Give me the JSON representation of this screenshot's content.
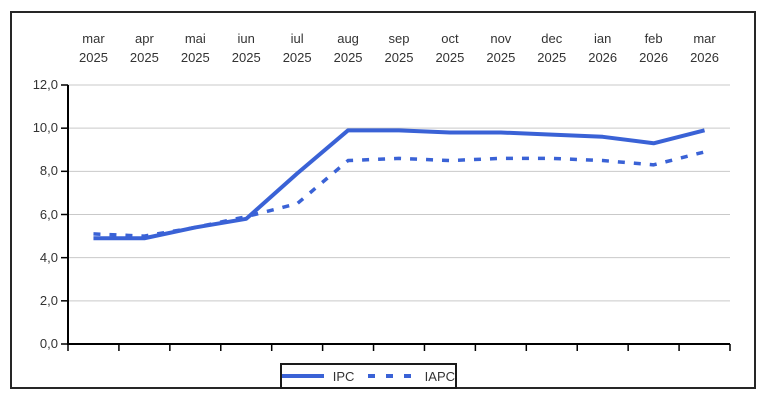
{
  "chart_data": {
    "type": "line",
    "title": "",
    "xlabel": "",
    "ylabel": "",
    "categories": [
      {
        "month": "mar",
        "year": "2025"
      },
      {
        "month": "apr",
        "year": "2025"
      },
      {
        "month": "mai",
        "year": "2025"
      },
      {
        "month": "iun",
        "year": "2025"
      },
      {
        "month": "iul",
        "year": "2025"
      },
      {
        "month": "aug",
        "year": "2025"
      },
      {
        "month": "sep",
        "year": "2025"
      },
      {
        "month": "oct",
        "year": "2025"
      },
      {
        "month": "nov",
        "year": "2025"
      },
      {
        "month": "dec",
        "year": "2025"
      },
      {
        "month": "ian",
        "year": "2026"
      },
      {
        "month": "feb",
        "year": "2026"
      },
      {
        "month": "mar",
        "year": "2026"
      }
    ],
    "series": [
      {
        "name": "IPC",
        "style": "solid",
        "values": [
          4.9,
          4.9,
          5.4,
          5.8,
          7.9,
          9.9,
          9.9,
          9.8,
          9.8,
          9.7,
          9.6,
          9.3,
          9.9
        ]
      },
      {
        "name": "IAPC",
        "style": "dashed",
        "values": [
          5.1,
          5.0,
          5.4,
          5.9,
          6.5,
          8.5,
          8.6,
          8.5,
          8.6,
          8.6,
          8.5,
          8.3,
          8.9
        ]
      }
    ],
    "y_axis": {
      "min": 0,
      "max": 12,
      "step": 2,
      "tick_labels": [
        "12,0",
        "10,0",
        "8,0",
        "6,0",
        "4,0",
        "2,0",
        "0,0"
      ]
    },
    "grid": true,
    "legend_position": "bottom-center",
    "colors": {
      "line": "#3a62d6",
      "grid": "#c9c9c9",
      "axis": "#000000"
    }
  }
}
